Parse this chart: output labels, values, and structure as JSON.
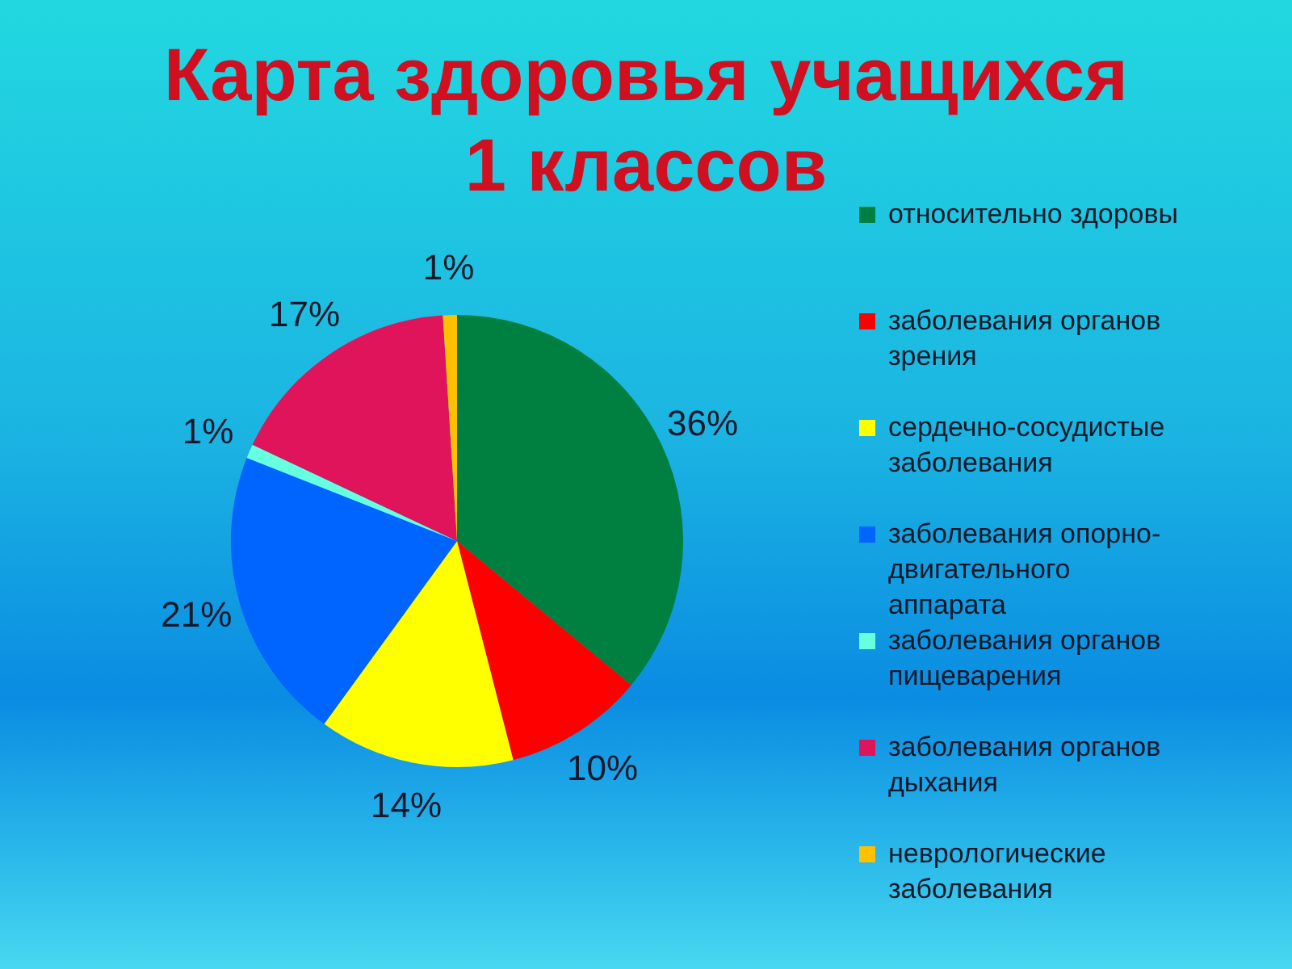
{
  "chart_data": {
    "type": "pie",
    "title": "Карта здоровья учащихся 1 классов",
    "categories": [
      "относительно здоровы",
      "заболевания органов зрения",
      "сердечно-сосудистые заболевания",
      "заболевания опорно-двигательного аппарата",
      "заболевания органов пищеварения",
      "заболевания органов дыхания",
      "неврологические заболевания"
    ],
    "values": [
      36,
      10,
      14,
      21,
      1,
      17,
      1
    ],
    "colors": [
      "#008040",
      "#ff0000",
      "#ffff00",
      "#0064ff",
      "#66ffe0",
      "#e0145a",
      "#ffc000"
    ],
    "value_labels": [
      "36%",
      "10%",
      "14%",
      "21%",
      "1%",
      "17%",
      "1%"
    ],
    "legend": "right"
  }
}
